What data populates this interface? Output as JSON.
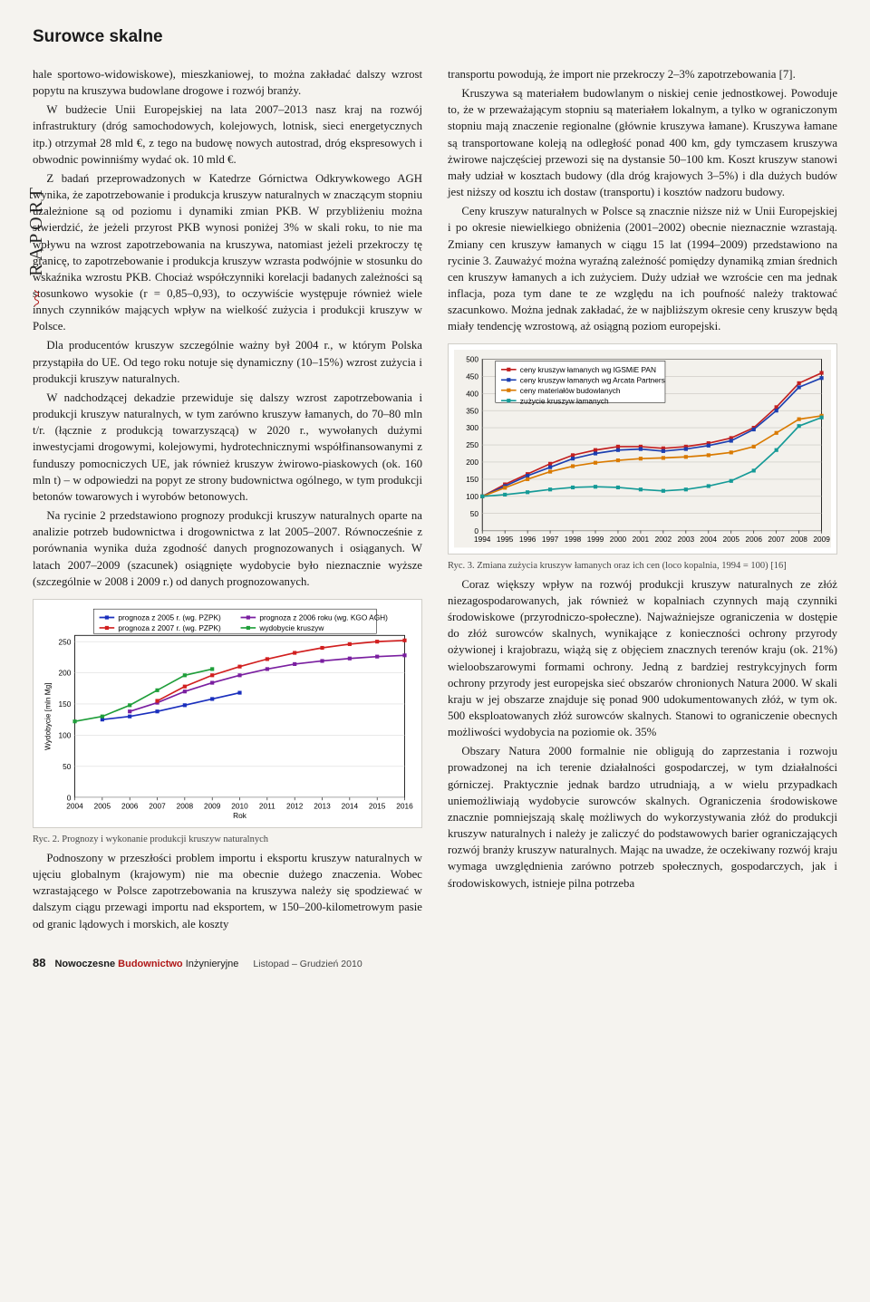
{
  "section_title": "Surowce skalne",
  "vertical_label": "RAPORT",
  "left_column": {
    "p1": "hale sportowo-widowiskowe), mieszkaniowej, to można zakładać dalszy wzrost popytu na kruszywa budowlane drogowe i rozwój branży.",
    "p2": "W budżecie Unii Europejskiej na lata 2007–2013 nasz kraj na rozwój infrastruktury (dróg samochodowych, kolejowych, lotnisk, sieci energetycznych itp.) otrzymał 28 mld €, z tego na budowę nowych autostrad, dróg ekspresowych i obwodnic powinniśmy wydać ok. 10 mld €.",
    "p3": "Z badań przeprowadzonych w Katedrze Górnictwa Odkrywkowego AGH wynika, że zapotrzebowanie i produkcja kruszyw naturalnych w znaczącym stopniu uzależnione są od poziomu i dynamiki zmian PKB. W przybliżeniu można stwierdzić, że jeżeli przyrost PKB wynosi poniżej 3% w skali roku, to nie ma wpływu na wzrost zapotrzebowania na kruszywa, natomiast jeżeli przekroczy tę granicę, to zapotrzebowanie i produkcja kruszyw wzrasta podwójnie w stosunku do wskaźnika wzrostu PKB. Chociaż współczynniki korelacji badanych zależności są stosunkowo wysokie (r = 0,85–0,93), to oczywiście występuje również wiele innych czynników mających wpływ na wielkość zużycia i produkcji kruszyw w Polsce.",
    "p4": "Dla producentów kruszyw szczególnie ważny był 2004 r., w którym Polska przystąpiła do UE. Od tego roku notuje się dynamiczny (10–15%) wzrost zużycia i produkcji kruszyw naturalnych.",
    "p5": "W nadchodzącej dekadzie przewiduje się dalszy wzrost zapotrzebowania i produkcji kruszyw naturalnych, w tym zarówno kruszyw łamanych, do 70–80 mln t/r. (łącznie z produkcją towarzyszącą) w 2020 r., wywołanych dużymi inwestycjami drogowymi, kolejowymi, hydrotechnicznymi współfinansowanymi z funduszy pomocniczych UE, jak również kruszyw żwirowo-piaskowych (ok. 160 mln t) – w odpowiedzi na popyt ze strony budownictwa ogólnego, w tym produkcji betonów towarowych i wyrobów betonowych.",
    "p6": "Na rycinie 2 przedstawiono prognozy produkcji kruszyw naturalnych oparte na analizie potrzeb budownictwa i drogownictwa z lat 2005–2007. Równocześnie z porównania wynika duża zgodność danych prognozowanych i osiąganych. W latach 2007–2009 (szacunek) osiągnięte wydobycie było nieznacznie wyższe (szczególnie w 2008 i 2009 r.) od danych prognozowanych.",
    "p7": "Podnoszony w przeszłości problem importu i eksportu kruszyw naturalnych w ujęciu globalnym (krajowym) nie ma obecnie dużego znaczenia. Wobec wzrastającego w Polsce zapotrzebowania na kruszywa należy się spodziewać w dalszym ciągu przewagi importu nad eksportem, w 150–200-kilometrowym pasie od granic lądowych i morskich, ale koszty"
  },
  "right_column": {
    "p1": "transportu powodują, że import nie przekroczy 2–3% zapotrzebowania [7].",
    "p2": "Kruszywa są materiałem budowlanym o niskiej cenie jednostkowej. Powoduje to, że w przeważającym stopniu są materiałem lokalnym, a tylko w ograniczonym stopniu mają znaczenie regionalne (głównie kruszywa łamane). Kruszywa łamane są transportowane koleją na odległość ponad 400 km, gdy tymczasem kruszywa żwirowe najczęściej przewozi się na dystansie 50–100 km. Koszt kruszyw stanowi mały udział w kosztach budowy (dla dróg krajowych 3–5%) i dla dużych budów jest niższy od kosztu ich dostaw (transportu) i kosztów nadzoru budowy.",
    "p3": "Ceny kruszyw naturalnych w Polsce są znacznie niższe niż w Unii Europejskiej i po okresie niewielkiego obniżenia (2001–2002) obecnie nieznacznie wzrastają. Zmiany cen kruszyw łamanych w ciągu 15 lat (1994–2009) przedstawiono na rycinie 3. Zauważyć można wyraźną zależność pomiędzy dynamiką zmian średnich cen kruszyw łamanych a ich zużyciem. Duży udział we wzroście cen ma jednak inflacja, poza tym dane te ze względu na ich poufność należy traktować szacunkowo. Można jednak zakładać, że w najbliższym okresie ceny kruszyw będą miały tendencję wzrostową, aż osiągną poziom europejski.",
    "p4": "Coraz większy wpływ na rozwój produkcji kruszyw naturalnych ze złóż niezagospodarowanych, jak również w kopalniach czynnych mają czynniki środowiskowe (przyrodniczo-społeczne). Najważniejsze ograniczenia w dostępie do złóż surowców skalnych, wynikające z konieczności ochrony przyrody ożywionej i krajobrazu, wiążą się z objęciem znacznych terenów kraju (ok. 21%) wieloobszarowymi formami ochrony. Jedną z bardziej restrykcyjnych form ochrony przyrody jest europejska sieć obszarów chronionych Natura 2000. W skali kraju w jej obszarze znajduje się ponad 900 udokumentowanych złóż, w tym ok. 500 eksploatowanych złóż surowców skalnych. Stanowi to ograniczenie obecnych możliwości wydobycia na poziomie ok. 35%",
    "p5": "Obszary Natura 2000 formalnie nie obligują do zaprzestania i rozwoju prowadzonej na ich terenie działalności gospodarczej, w tym działalności górniczej. Praktycznie jednak bardzo utrudniają, a w wielu przypadkach uniemożliwiają wydobycie surowców skalnych. Ograniczenia środowiskowe znacznie pomniejszają skalę możliwych do wykorzystywania złóż do produkcji kruszyw naturalnych i należy je zaliczyć do podstawowych barier ograniczających rozwój branży kruszyw naturalnych. Mając na uwadze, że oczekiwany rozwój kraju wymaga uwzględnienia zarówno potrzeb społecznych, gospodarczych, jak i środowiskowych, istnieje pilna potrzeba"
  },
  "chart2": {
    "type": "line",
    "caption": "Ryc. 2. Prognozy i wykonanie produkcji kruszyw naturalnych",
    "ylabel": "Wydobycie [mln Mg]",
    "xlabel": "Rok",
    "x": [
      2004,
      2005,
      2006,
      2007,
      2008,
      2009,
      2010,
      2011,
      2012,
      2013,
      2014,
      2015,
      2016
    ],
    "ylim": [
      0,
      260
    ],
    "ytick_step": 50,
    "background": "#ffffff",
    "grid_color": "#dcdcdc",
    "series": [
      {
        "label": "prognoza z 2005 r. (wg. PZPK)",
        "color": "#1a2fbd",
        "values": [
          null,
          125,
          130,
          138,
          148,
          158,
          168,
          null,
          null,
          null,
          null,
          null,
          null
        ]
      },
      {
        "label": "prognoza z 2006 roku (wg. KGO AGH)",
        "color": "#7a1fa0",
        "values": [
          null,
          null,
          138,
          152,
          170,
          184,
          196,
          206,
          214,
          219,
          223,
          226,
          228
        ]
      },
      {
        "label": "prognoza z 2007 r. (wg. PZPK)",
        "color": "#d11f1f",
        "values": [
          null,
          null,
          null,
          155,
          178,
          196,
          210,
          222,
          232,
          240,
          246,
          250,
          252
        ]
      },
      {
        "label": "wydobycie kruszyw",
        "color": "#1f9e3a",
        "values": [
          122,
          130,
          148,
          172,
          196,
          206,
          null,
          null,
          null,
          null,
          null,
          null,
          null
        ]
      }
    ]
  },
  "chart3": {
    "type": "line",
    "caption": "Ryc. 3. Zmiana zużycia kruszyw łamanych oraz ich cen (loco kopalnia, 1994 = 100) [16]",
    "x": [
      1994,
      1995,
      1996,
      1997,
      1998,
      1999,
      2000,
      2001,
      2002,
      2003,
      2004,
      2005,
      2006,
      2007,
      2008,
      2009
    ],
    "ylim": [
      0,
      500
    ],
    "ytick_step": 50,
    "background": "#f3f1ec",
    "grid_color": "#c9c7c0",
    "series": [
      {
        "label": "ceny kruszyw łamanych wg IGSMiE PAN",
        "color": "#c22020",
        "values": [
          100,
          135,
          165,
          195,
          220,
          235,
          245,
          245,
          240,
          245,
          255,
          270,
          300,
          360,
          430,
          460
        ]
      },
      {
        "label": "ceny kruszyw łamanych wg Arcata Partners",
        "color": "#1c3fb0",
        "values": [
          100,
          130,
          160,
          185,
          210,
          225,
          235,
          238,
          232,
          238,
          248,
          262,
          295,
          350,
          418,
          445
        ]
      },
      {
        "label": "ceny materiałów budowlanych",
        "color": "#d97a00",
        "values": [
          100,
          125,
          150,
          172,
          188,
          198,
          205,
          210,
          212,
          215,
          220,
          228,
          245,
          285,
          325,
          335
        ]
      },
      {
        "label": "zużycie kruszyw łamanych",
        "color": "#159a97",
        "values": [
          100,
          105,
          112,
          120,
          126,
          128,
          126,
          120,
          116,
          120,
          130,
          145,
          175,
          235,
          305,
          330
        ]
      }
    ]
  },
  "footer": {
    "page_number": "88",
    "journal_prefix": "Nowoczesne ",
    "journal_accent": "Budownictwo ",
    "journal_suffix": "Inżynieryjne",
    "issue": "Listopad – Grudzień 2010"
  }
}
